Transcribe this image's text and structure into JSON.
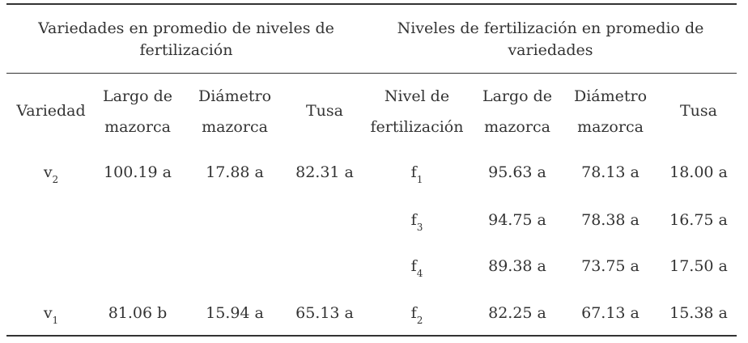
{
  "groups": {
    "left": "Variedades en promedio de niveles de fertilización",
    "right": "Niveles de fertilización en promedio de variedades"
  },
  "columns": {
    "variedad": "Variedad",
    "largo_left": [
      "Largo de",
      "mazorca"
    ],
    "diametro_left": [
      "Diámetro",
      "mazorca"
    ],
    "tusa_left": "Tusa",
    "nivel": [
      "Nivel de",
      "fertilización"
    ],
    "largo_right": [
      "Largo de",
      "mazorca"
    ],
    "diametro_right": [
      "Diámetro",
      "mazorca"
    ],
    "tusa_right": "Tusa"
  },
  "rows": [
    {
      "variedad": {
        "base": "v",
        "sub": "2"
      },
      "largo": "100.19 a",
      "diametro": "17.88 a",
      "tusa": "82.31 a",
      "nivel": {
        "base": "f",
        "sub": "1"
      },
      "largo_f": "95.63 a",
      "diametro_f": "78.13 a",
      "tusa_f": "18.00 a"
    },
    {
      "variedad": {
        "base": "",
        "sub": ""
      },
      "largo": "",
      "diametro": "",
      "tusa": "",
      "nivel": {
        "base": "f",
        "sub": "3"
      },
      "largo_f": "94.75 a",
      "diametro_f": "78.38 a",
      "tusa_f": "16.75 a"
    },
    {
      "variedad": {
        "base": "",
        "sub": ""
      },
      "largo": "",
      "diametro": "",
      "tusa": "",
      "nivel": {
        "base": "f",
        "sub": "4"
      },
      "largo_f": "89.38 a",
      "diametro_f": "73.75 a",
      "tusa_f": "17.50 a"
    },
    {
      "variedad": {
        "base": "v",
        "sub": "1"
      },
      "largo": "81.06 b",
      "diametro": "15.94 a",
      "tusa": "65.13 a",
      "nivel": {
        "base": "f",
        "sub": "2"
      },
      "largo_f": "82.25 a",
      "diametro_f": "67.13 a",
      "tusa_f": "15.38 a"
    }
  ]
}
